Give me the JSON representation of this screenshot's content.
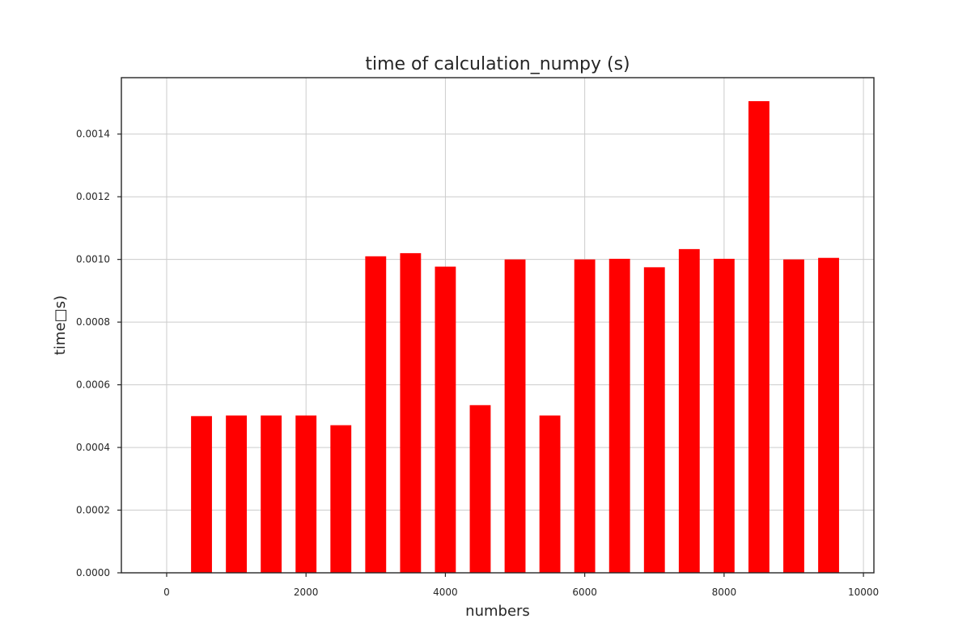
{
  "chart_data": {
    "type": "bar",
    "title": "time of calculation_numpy (s)",
    "xlabel": "numbers",
    "ylabel": "time□s)",
    "xlim": [
      -650,
      10150
    ],
    "ylim": [
      0,
      0.00158
    ],
    "xticks": [
      0,
      2000,
      4000,
      6000,
      8000,
      10000
    ],
    "yticks": [
      0.0,
      0.0002,
      0.0004,
      0.0006,
      0.0008,
      0.001,
      0.0012,
      0.0014
    ],
    "ytick_labels": [
      "0.0000",
      "0.0002",
      "0.0004",
      "0.0006",
      "0.0008",
      "0.0010",
      "0.0012",
      "0.0014"
    ],
    "bar_width": 300,
    "grid": true,
    "color": "#ff0000",
    "x": [
      500,
      1000,
      1500,
      2000,
      2500,
      3000,
      3500,
      4000,
      4500,
      5000,
      5500,
      6000,
      6500,
      7000,
      7500,
      8000,
      8500,
      9000,
      9500
    ],
    "values": [
      0.0005,
      0.000502,
      0.000502,
      0.000502,
      0.000471,
      0.00101,
      0.00102,
      0.000977,
      0.000535,
      0.001,
      0.000502,
      0.001,
      0.001002,
      0.000975,
      0.001033,
      0.001002,
      0.001505,
      0.001,
      0.001005
    ]
  }
}
